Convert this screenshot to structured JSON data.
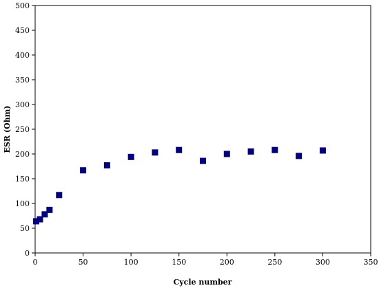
{
  "chart_data": {
    "type": "scatter",
    "title": "",
    "xlabel": "Cycle number",
    "ylabel": "ESR (Ohm)",
    "xlim": [
      0,
      350
    ],
    "ylim": [
      0,
      500
    ],
    "x_ticks": [
      0,
      50,
      100,
      150,
      200,
      250,
      300,
      350
    ],
    "y_ticks": [
      0,
      50,
      100,
      150,
      200,
      250,
      300,
      350,
      400,
      450,
      500
    ],
    "grid": false,
    "legend": "none",
    "marker": "square",
    "marker_color": "#000080",
    "series": [
      {
        "points": [
          {
            "x": 1,
            "y": 64
          },
          {
            "x": 5,
            "y": 68
          },
          {
            "x": 10,
            "y": 78
          },
          {
            "x": 15,
            "y": 87
          },
          {
            "x": 25,
            "y": 117
          },
          {
            "x": 50,
            "y": 167
          },
          {
            "x": 75,
            "y": 177
          },
          {
            "x": 100,
            "y": 194
          },
          {
            "x": 125,
            "y": 203
          },
          {
            "x": 150,
            "y": 208
          },
          {
            "x": 175,
            "y": 186
          },
          {
            "x": 200,
            "y": 200
          },
          {
            "x": 225,
            "y": 205
          },
          {
            "x": 250,
            "y": 208
          },
          {
            "x": 275,
            "y": 196
          },
          {
            "x": 300,
            "y": 207
          }
        ]
      }
    ]
  }
}
